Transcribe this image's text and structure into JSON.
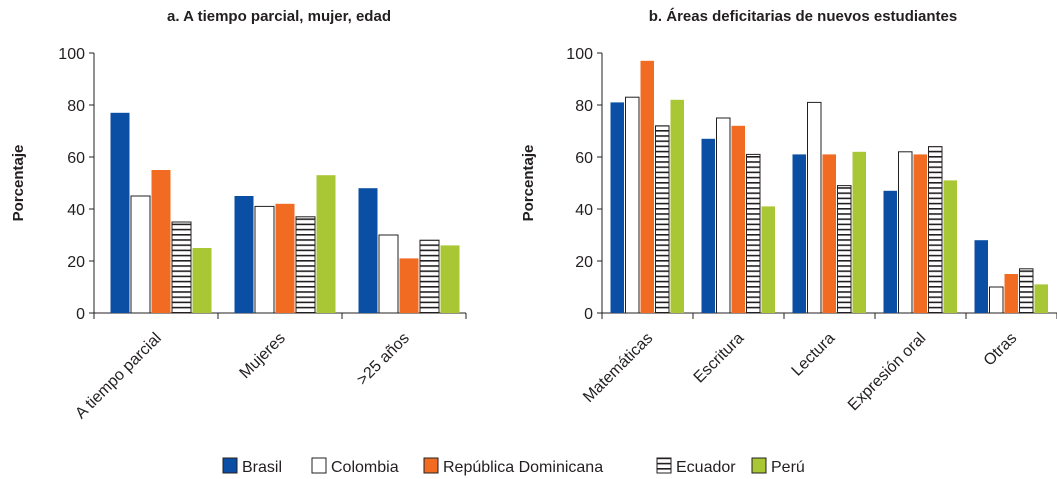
{
  "legend": [
    "Brasil",
    "Colombia",
    "República Dominicana",
    "Ecuador",
    "Perú"
  ],
  "colors": {
    "Brasil": "#0b4fa5",
    "Colombia": "#ffffff",
    "República Dominicana": "#f26b22",
    "Ecuador": "#ffffff",
    "Perú": "#a9c635"
  },
  "chart_data": [
    {
      "type": "bar",
      "title": "a. A tiempo parcial, mujer, edad",
      "ylabel": "Porcentaje",
      "xlabel": "",
      "ylim": [
        0,
        100
      ],
      "yticks": [
        "0",
        "20",
        "40",
        "60",
        "80",
        "100"
      ],
      "categories": [
        "A tiempo parcial",
        "Mujeres",
        ">25 años"
      ],
      "series": [
        {
          "name": "Brasil",
          "values": [
            77,
            45,
            48
          ]
        },
        {
          "name": "Colombia",
          "values": [
            45,
            41,
            30
          ]
        },
        {
          "name": "República Dominicana",
          "values": [
            55,
            42,
            21
          ]
        },
        {
          "name": "Ecuador",
          "values": [
            35,
            37,
            28
          ]
        },
        {
          "name": "Perú",
          "values": [
            25,
            53,
            26
          ]
        }
      ],
      "legend": "bottom",
      "grid": false
    },
    {
      "type": "bar",
      "title": "b. Áreas deficitarias de nuevos estudiantes",
      "ylabel": "Porcentaje",
      "xlabel": "",
      "ylim": [
        0,
        100
      ],
      "yticks": [
        "0",
        "20",
        "40",
        "60",
        "80",
        "100"
      ],
      "categories": [
        "Matemáticas",
        "Escritura",
        "Lectura",
        "Expresión oral",
        "Otras"
      ],
      "series": [
        {
          "name": "Brasil",
          "values": [
            81,
            67,
            61,
            47,
            28
          ]
        },
        {
          "name": "Colombia",
          "values": [
            83,
            75,
            81,
            62,
            10
          ]
        },
        {
          "name": "República Dominicana",
          "values": [
            97,
            72,
            61,
            61,
            15
          ]
        },
        {
          "name": "Ecuador",
          "values": [
            72,
            61,
            49,
            64,
            17
          ]
        },
        {
          "name": "Perú",
          "values": [
            82,
            41,
            62,
            51,
            11
          ]
        }
      ],
      "legend": "bottom",
      "grid": false
    }
  ]
}
